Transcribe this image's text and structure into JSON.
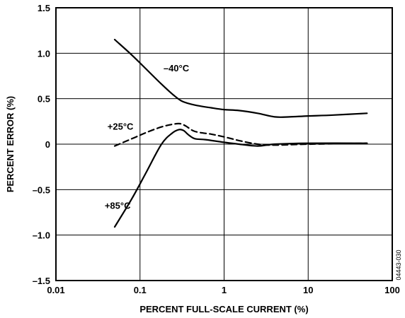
{
  "chart_data": {
    "type": "line",
    "xlabel": "PERCENT FULL-SCALE CURRENT (%)",
    "ylabel": "PERCENT ERROR (%)",
    "x_scale": "log",
    "xlim": [
      0.01,
      100
    ],
    "ylim": [
      -1.5,
      1.5
    ],
    "grid": true,
    "x_ticks": [
      {
        "value": 0.01,
        "label": "0.01"
      },
      {
        "value": 0.1,
        "label": "0.1"
      },
      {
        "value": 1,
        "label": "1"
      },
      {
        "value": 10,
        "label": "10"
      },
      {
        "value": 100,
        "label": "100"
      }
    ],
    "y_ticks": [
      {
        "value": 1.5,
        "label": "1.5"
      },
      {
        "value": 1.0,
        "label": "1.0"
      },
      {
        "value": 0.5,
        "label": "0.5"
      },
      {
        "value": 0,
        "label": "0"
      },
      {
        "value": -0.5,
        "label": "–0.5"
      },
      {
        "value": -1.0,
        "label": "–1.0"
      },
      {
        "value": -1.5,
        "label": "–1.5"
      }
    ],
    "series": [
      {
        "name": "–40°C",
        "dash": "solid",
        "label_at": {
          "x": 0.19,
          "y": 0.8
        },
        "x": [
          0.05,
          0.08,
          0.12,
          0.18,
          0.25,
          0.32,
          0.45,
          0.7,
          1.0,
          1.5,
          2.5,
          4,
          6,
          10,
          20,
          50
        ],
        "y": [
          1.15,
          0.98,
          0.82,
          0.66,
          0.54,
          0.47,
          0.43,
          0.4,
          0.38,
          0.37,
          0.34,
          0.3,
          0.3,
          0.31,
          0.32,
          0.34
        ]
      },
      {
        "name": "+25°C",
        "dash": "dashed",
        "label_at": {
          "x": 0.041,
          "y": 0.16
        },
        "x": [
          0.05,
          0.08,
          0.12,
          0.18,
          0.25,
          0.3,
          0.35,
          0.45,
          0.7,
          1.0,
          1.5,
          2.5,
          4,
          10,
          50
        ],
        "y": [
          -0.02,
          0.06,
          0.13,
          0.19,
          0.22,
          0.225,
          0.2,
          0.14,
          0.11,
          0.08,
          0.04,
          0.0,
          -0.01,
          0.0,
          0.01
        ]
      },
      {
        "name": "+85°C",
        "dash": "solid",
        "label_at": {
          "x": 0.038,
          "y": -0.71
        },
        "x": [
          0.05,
          0.08,
          0.12,
          0.18,
          0.24,
          0.29,
          0.33,
          0.38,
          0.45,
          0.6,
          1.0,
          1.5,
          2.5,
          4,
          10,
          50
        ],
        "y": [
          -0.91,
          -0.6,
          -0.3,
          0.0,
          0.12,
          0.16,
          0.15,
          0.1,
          0.06,
          0.05,
          0.02,
          0.0,
          -0.02,
          0.0,
          0.01,
          0.01
        ]
      }
    ]
  },
  "figure_id": "04443-030"
}
